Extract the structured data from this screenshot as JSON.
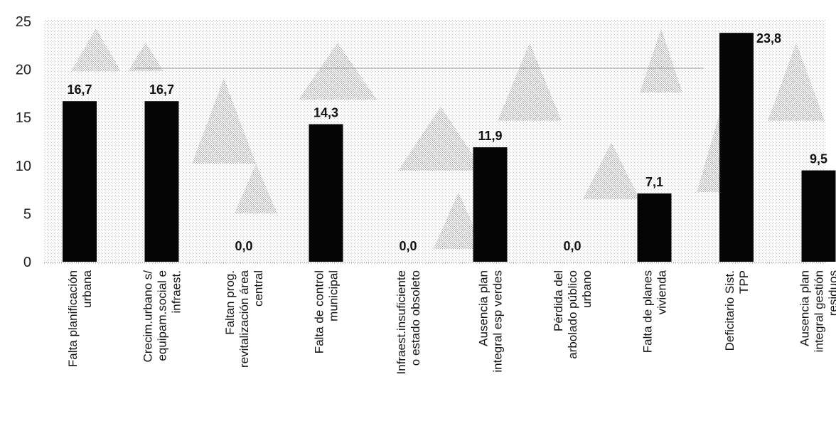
{
  "chart_data": {
    "type": "bar",
    "title": "",
    "xlabel": "",
    "ylabel": "",
    "ylim": [
      0,
      25
    ],
    "yticks": [
      "0",
      "5",
      "10",
      "15",
      "20",
      "25"
    ],
    "grid": false,
    "legend": "none",
    "categories": [
      [
        "Falta planificación",
        "urbana"
      ],
      [
        "Crecim.urbano s/",
        "equipam.social e",
        "infraest."
      ],
      [
        "Faltan prog.",
        "revitalización área",
        "central"
      ],
      [
        "Falta de control",
        "municipal"
      ],
      [
        "Infraest.insuficiente",
        "o estado obsoleto"
      ],
      [
        "Ausencia plan",
        "integral esp verdes"
      ],
      [
        "Pérdida del",
        "arbolado público",
        "urbano"
      ],
      [
        "Falta de planes",
        "vivienda"
      ],
      [
        "Deficitario Sist.",
        "TPP"
      ],
      [
        "Ausencia plan",
        "integral gestión",
        "residuos"
      ]
    ],
    "values": [
      16.7,
      16.7,
      0.0,
      14.3,
      0.0,
      11.9,
      0.0,
      7.1,
      23.8,
      9.5
    ],
    "value_labels": [
      "16,7",
      "16,7",
      "0,0",
      "14,3",
      "0,0",
      "11,9",
      "0,0",
      "7,1",
      "23,8",
      "9,5"
    ],
    "colors": {
      "bar": "#050505",
      "background": "#ffffff",
      "texture": "#9a9a9a",
      "axis": "#555555"
    }
  }
}
